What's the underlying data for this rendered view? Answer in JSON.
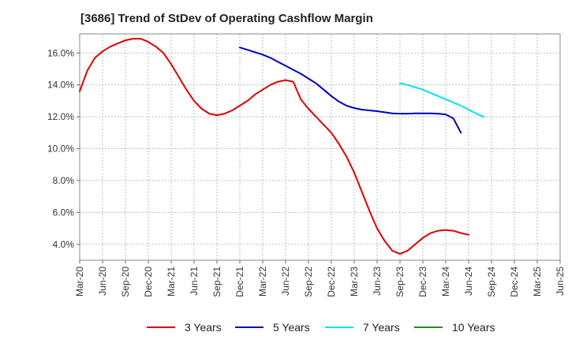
{
  "chart_data": {
    "type": "line",
    "title": "[3686]  Trend of StDev of Operating Cashflow Margin",
    "xlabel": "",
    "ylabel": "",
    "x_tick_labels": [
      "Mar-20",
      "Jun-20",
      "Sep-20",
      "Dec-20",
      "Mar-21",
      "Jun-21",
      "Sep-21",
      "Dec-21",
      "Mar-22",
      "Jun-22",
      "Sep-22",
      "Dec-22",
      "Mar-23",
      "Jun-23",
      "Sep-23",
      "Dec-23",
      "Mar-24",
      "Jun-24",
      "Sep-24",
      "Dec-24",
      "Mar-25",
      "Jun-25"
    ],
    "y_tick_labels": [
      "4.0%",
      "6.0%",
      "8.0%",
      "10.0%",
      "12.0%",
      "14.0%",
      "16.0%"
    ],
    "ylim": [
      3.0,
      17.2
    ],
    "grid": true,
    "legend_position": "bottom",
    "series": [
      {
        "name": "3 Years",
        "color": "#dd0000",
        "start_index": 0,
        "values": [
          13.6,
          14.9,
          15.7,
          16.1,
          16.4,
          16.6,
          16.8,
          16.9,
          16.9,
          16.7,
          16.4,
          16.0,
          15.3,
          14.5,
          13.7,
          13.0,
          12.5,
          12.2,
          12.1,
          12.2,
          12.4,
          12.7,
          13.0,
          13.4,
          13.7,
          14.0,
          14.2,
          14.3,
          14.2,
          13.1,
          12.5,
          12.0,
          11.5,
          11.0,
          10.3,
          9.5,
          8.5,
          7.3,
          6.1,
          5.0,
          4.2,
          3.6,
          3.4,
          3.6,
          4.0,
          4.4,
          4.7,
          4.85,
          4.9,
          4.85,
          4.7,
          4.6
        ]
      },
      {
        "name": "5 Years",
        "color": "#0000bb",
        "start_index": 21,
        "values": [
          16.35,
          16.2,
          16.05,
          15.9,
          15.7,
          15.45,
          15.2,
          14.95,
          14.7,
          14.4,
          14.1,
          13.7,
          13.3,
          12.95,
          12.7,
          12.55,
          12.45,
          12.4,
          12.35,
          12.28,
          12.22,
          12.2,
          12.2,
          12.22,
          12.22,
          12.22,
          12.2,
          12.15,
          11.9,
          11.0
        ]
      },
      {
        "name": "7 Years",
        "color": "#00e5ee",
        "start_index": 42,
        "values": [
          14.1,
          14.0,
          13.85,
          13.7,
          13.5,
          13.3,
          13.1,
          12.9,
          12.7,
          12.45,
          12.2,
          12.0
        ]
      },
      {
        "name": "10 Years",
        "color": "#228b22",
        "start_index": 0,
        "values": []
      }
    ]
  }
}
